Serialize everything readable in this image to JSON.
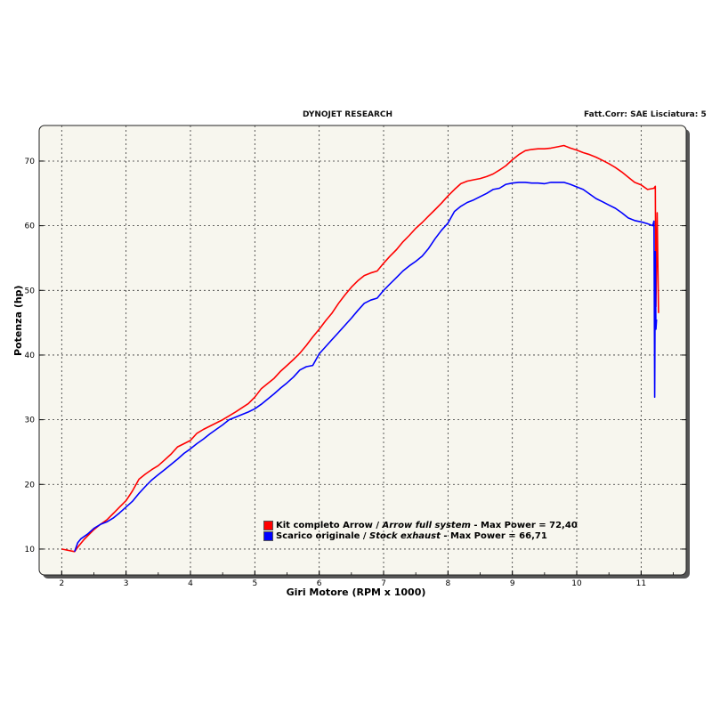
{
  "header": {
    "left": "DYNOJET RESEARCH",
    "right": "Fatt.Corr: SAE  Lisciatura: 5"
  },
  "chart_data": {
    "type": "line",
    "title": "",
    "xlabel": "Giri Motore (RPM x 1000)",
    "ylabel": "Potenza (hp)",
    "xlim": [
      1.65,
      11.7
    ],
    "ylim": [
      6,
      75.5
    ],
    "xticks": [
      "2",
      "3",
      "4",
      "5",
      "6",
      "7",
      "8",
      "9",
      "10",
      "11"
    ],
    "yticks": [
      "10",
      "20",
      "30",
      "40",
      "50",
      "60",
      "70"
    ],
    "grid": true,
    "legend_position": "bottom-center",
    "series": [
      {
        "name_main": "Kit completo Arrow",
        "sep": " / ",
        "name_it": "Arrow full system",
        "suffix": " - Max Power = 72,40",
        "color": "#ff0000",
        "x": [
          2.0,
          2.1,
          2.2,
          2.25,
          2.35,
          2.5,
          2.6,
          2.7,
          2.8,
          2.9,
          3.0,
          3.1,
          3.2,
          3.3,
          3.4,
          3.5,
          3.6,
          3.7,
          3.8,
          3.9,
          4.0,
          4.1,
          4.2,
          4.3,
          4.5,
          4.7,
          4.9,
          5.0,
          5.1,
          5.2,
          5.3,
          5.4,
          5.5,
          5.6,
          5.7,
          5.8,
          5.9,
          6.0,
          6.1,
          6.2,
          6.3,
          6.4,
          6.5,
          6.6,
          6.7,
          6.8,
          6.9,
          7.0,
          7.1,
          7.2,
          7.3,
          7.4,
          7.5,
          7.6,
          7.7,
          7.8,
          7.9,
          8.0,
          8.1,
          8.2,
          8.3,
          8.4,
          8.5,
          8.6,
          8.7,
          8.8,
          8.9,
          9.0,
          9.1,
          9.2,
          9.3,
          9.4,
          9.5,
          9.6,
          9.7,
          9.8,
          9.9,
          10.0,
          10.1,
          10.2,
          10.3,
          10.4,
          10.5,
          10.6,
          10.7,
          10.8,
          10.9,
          11.0,
          11.1,
          11.2,
          11.22,
          11.23,
          11.25,
          11.27
        ],
        "y": [
          10.0,
          9.8,
          9.6,
          10.3,
          11.5,
          13.0,
          13.8,
          14.5,
          15.5,
          16.5,
          17.5,
          19.0,
          20.8,
          21.6,
          22.3,
          22.9,
          23.8,
          24.7,
          25.8,
          26.3,
          26.8,
          27.9,
          28.5,
          29.0,
          30.0,
          31.2,
          32.5,
          33.5,
          34.8,
          35.6,
          36.4,
          37.5,
          38.4,
          39.3,
          40.3,
          41.5,
          42.8,
          44.0,
          45.3,
          46.5,
          48.0,
          49.3,
          50.5,
          51.5,
          52.3,
          52.7,
          53.0,
          54.2,
          55.3,
          56.3,
          57.5,
          58.5,
          59.6,
          60.5,
          61.5,
          62.5,
          63.5,
          64.6,
          65.6,
          66.5,
          66.9,
          67.1,
          67.3,
          67.6,
          68.0,
          68.6,
          69.3,
          70.2,
          71.0,
          71.6,
          71.8,
          71.9,
          71.9,
          72.0,
          72.2,
          72.4,
          72.0,
          71.7,
          71.3,
          71.0,
          70.6,
          70.1,
          69.6,
          69.0,
          68.3,
          67.5,
          66.7,
          66.3,
          65.6,
          65.8,
          66.1,
          47.5,
          62.0,
          46.5
        ]
      },
      {
        "name_main": "Scarico originale",
        "sep": " / ",
        "name_it": "Stock exhaust",
        "suffix": " - Max Power = 66,71",
        "color": "#0000ff",
        "x": [
          2.2,
          2.25,
          2.3,
          2.4,
          2.5,
          2.6,
          2.7,
          2.8,
          2.9,
          3.0,
          3.1,
          3.2,
          3.3,
          3.4,
          3.5,
          3.6,
          3.7,
          3.8,
          3.9,
          4.0,
          4.1,
          4.2,
          4.3,
          4.4,
          4.5,
          4.6,
          4.7,
          4.8,
          4.9,
          5.0,
          5.1,
          5.2,
          5.3,
          5.4,
          5.5,
          5.6,
          5.7,
          5.8,
          5.9,
          6.0,
          6.1,
          6.2,
          6.3,
          6.4,
          6.5,
          6.6,
          6.7,
          6.8,
          6.9,
          7.0,
          7.1,
          7.2,
          7.3,
          7.4,
          7.5,
          7.6,
          7.7,
          7.8,
          7.9,
          8.0,
          8.1,
          8.2,
          8.3,
          8.4,
          8.5,
          8.6,
          8.7,
          8.8,
          8.9,
          9.0,
          9.1,
          9.2,
          9.3,
          9.4,
          9.5,
          9.6,
          9.7,
          9.8,
          9.9,
          10.0,
          10.1,
          10.2,
          10.3,
          10.4,
          10.5,
          10.6,
          10.7,
          10.8,
          10.9,
          11.0,
          11.1,
          11.18,
          11.2,
          11.21,
          11.22,
          11.23,
          11.24
        ],
        "y": [
          9.6,
          11.0,
          11.6,
          12.3,
          13.2,
          13.8,
          14.2,
          14.8,
          15.6,
          16.5,
          17.4,
          18.6,
          19.7,
          20.7,
          21.5,
          22.3,
          23.1,
          23.9,
          24.8,
          25.5,
          26.3,
          27.0,
          27.8,
          28.5,
          29.2,
          30.0,
          30.4,
          30.8,
          31.2,
          31.7,
          32.4,
          33.2,
          34.0,
          34.9,
          35.7,
          36.6,
          37.7,
          38.2,
          38.4,
          40.2,
          41.3,
          42.4,
          43.5,
          44.6,
          45.7,
          46.9,
          48.0,
          48.5,
          48.8,
          50.0,
          51.0,
          52.0,
          53.0,
          53.8,
          54.5,
          55.3,
          56.5,
          58.0,
          59.3,
          60.4,
          62.2,
          63.0,
          63.6,
          64.0,
          64.5,
          65.0,
          65.6,
          65.8,
          66.4,
          66.6,
          66.7,
          66.7,
          66.6,
          66.6,
          66.5,
          66.7,
          66.7,
          66.71,
          66.4,
          66.0,
          65.6,
          64.9,
          64.2,
          63.7,
          63.2,
          62.7,
          62.0,
          61.2,
          60.8,
          60.6,
          60.3,
          60.0,
          60.7,
          33.5,
          56.0,
          44.0,
          45.5
        ]
      }
    ]
  }
}
